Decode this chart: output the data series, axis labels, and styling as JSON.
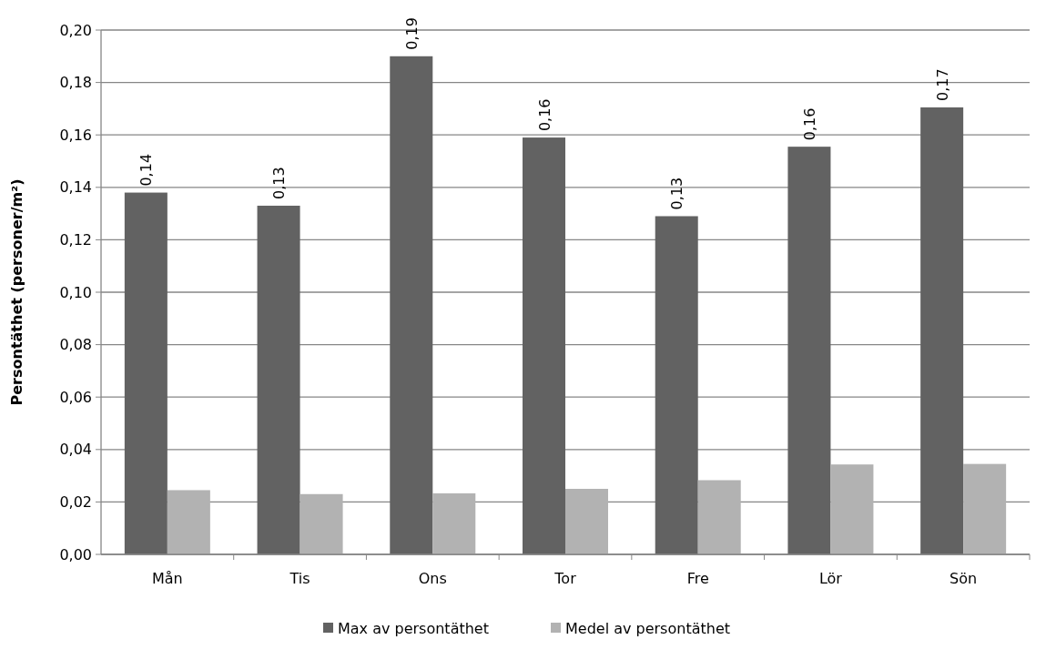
{
  "chart_data": {
    "type": "bar",
    "ylabel": "Persontäthet (personer/m²)",
    "categories": [
      "Mån",
      "Tis",
      "Ons",
      "Tor",
      "Fre",
      "Lör",
      "Sön"
    ],
    "series": [
      {
        "name": "Max av persontäthet",
        "color": "#626262",
        "values": [
          0.138,
          0.133,
          0.19,
          0.159,
          0.129,
          0.1555,
          0.1705
        ],
        "value_labels": [
          "0,14",
          "0,13",
          "0,19",
          "0,16",
          "0,13",
          "0,16",
          "0,17"
        ]
      },
      {
        "name": "Medel av persontäthet",
        "color": "#b2b2b2",
        "values": [
          0.0245,
          0.023,
          0.0233,
          0.025,
          0.0283,
          0.0343,
          0.0345
        ]
      }
    ],
    "ylim": [
      0,
      0.2
    ],
    "yticks": [
      {
        "value": 0,
        "label": "0,00"
      },
      {
        "value": 0.02,
        "label": "0,02"
      },
      {
        "value": 0.04,
        "label": "0,04"
      },
      {
        "value": 0.06,
        "label": "0,06"
      },
      {
        "value": 0.08,
        "label": "0,08"
      },
      {
        "value": 0.1,
        "label": "0,10"
      },
      {
        "value": 0.12,
        "label": "0,12"
      },
      {
        "value": 0.14,
        "label": "0,14"
      },
      {
        "value": 0.16,
        "label": "0,16"
      },
      {
        "value": 0.18,
        "label": "0,18"
      },
      {
        "value": 0.2,
        "label": "0,20"
      }
    ],
    "grid": "y",
    "legend": "bottom"
  }
}
